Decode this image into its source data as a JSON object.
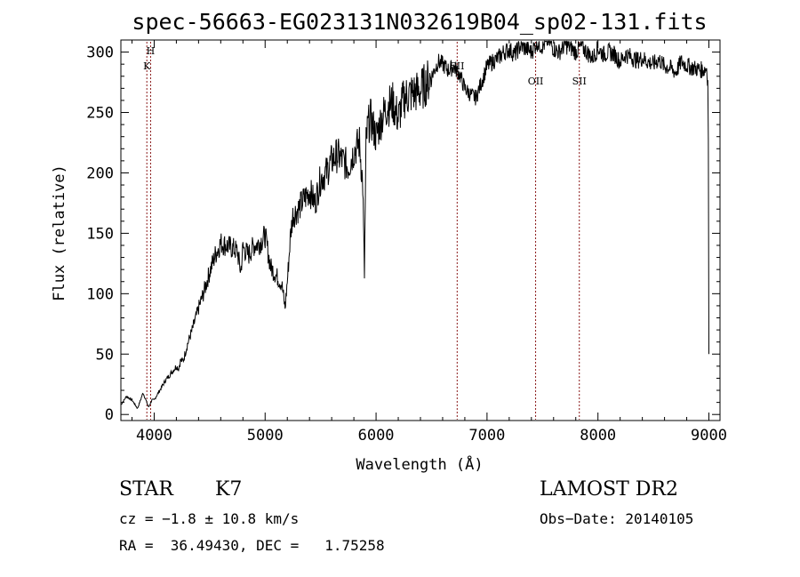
{
  "chart_data": {
    "type": "line",
    "title": "spec-56663-EG023131N032619B04_sp02-131.fits",
    "xlabel": "Wavelength (Å)",
    "ylabel": "Flux (relative)",
    "xlim": [
      3700,
      9100
    ],
    "ylim": [
      -5,
      310
    ],
    "x_ticks": [
      4000,
      5000,
      6000,
      7000,
      8000,
      9000
    ],
    "y_ticks": [
      0,
      50,
      100,
      150,
      200,
      250,
      300
    ],
    "x_tick_labels": [
      "4000",
      "5000",
      "6000",
      "7000",
      "8000",
      "9000"
    ],
    "y_tick_labels": [
      "0",
      "50",
      "100",
      "150",
      "200",
      "250",
      "300"
    ],
    "grid": false,
    "line_color": "#000000",
    "marker_color": "#8b1a1a",
    "series": [
      {
        "x": [
          3700,
          3750,
          3800,
          3850,
          3900,
          3950,
          3980,
          4000,
          4050,
          4100,
          4150,
          4200,
          4220,
          4240,
          4260,
          4300,
          4350,
          4400,
          4450,
          4500,
          4550,
          4600,
          4650,
          4700,
          4750,
          4780,
          4800,
          4850,
          4900,
          4950,
          5000,
          5050,
          5100,
          5150,
          5180,
          5200,
          5230,
          5250,
          5300,
          5350,
          5400,
          5450,
          5500,
          5550,
          5600,
          5650,
          5700,
          5750,
          5800,
          5850,
          5880,
          5895,
          5910,
          5925,
          5950,
          6000,
          6050,
          6100,
          6150,
          6200,
          6250,
          6300,
          6400,
          6500,
          6560,
          6600,
          6650,
          6700,
          6750,
          6800,
          6850,
          6900,
          6950,
          7000,
          7050,
          7100,
          7150,
          7200,
          7250,
          7300,
          7350,
          7400,
          7450,
          7500,
          7550,
          7600,
          7650,
          7700,
          7750,
          7800,
          7850,
          7900,
          7950,
          8000,
          8050,
          8100,
          8150,
          8200,
          8250,
          8300,
          8350,
          8400,
          8450,
          8500,
          8550,
          8600,
          8650,
          8700,
          8750,
          8800,
          8850,
          8900,
          8950,
          8980,
          8990,
          8995,
          9000
        ],
        "y": [
          8,
          15,
          12,
          5,
          18,
          6,
          12,
          12,
          20,
          28,
          34,
          40,
          38,
          45,
          44,
          58,
          72,
          88,
          102,
          118,
          132,
          142,
          140,
          138,
          135,
          118,
          138,
          132,
          140,
          142,
          148,
          122,
          115,
          108,
          88,
          110,
          150,
          165,
          170,
          178,
          185,
          175,
          195,
          200,
          210,
          215,
          210,
          205,
          218,
          225,
          190,
          115,
          225,
          238,
          245,
          230,
          245,
          255,
          258,
          245,
          262,
          265,
          268,
          280,
          292,
          290,
          285,
          288,
          282,
          270,
          265,
          262,
          275,
          288,
          292,
          295,
          300,
          302,
          298,
          305,
          303,
          300,
          308,
          305,
          310,
          303,
          300,
          306,
          304,
          300,
          305,
          300,
          295,
          303,
          298,
          300,
          298,
          292,
          298,
          296,
          293,
          295,
          292,
          290,
          294,
          288,
          287,
          283,
          292,
          289,
          287,
          286,
          285,
          287,
          275,
          230,
          50
        ]
      }
    ],
    "line_markers": [
      {
        "label": "H",
        "x": 3968
      },
      {
        "label": "K",
        "x": 3934
      },
      {
        "label": "SII",
        "x": 6731
      },
      {
        "label": "OII",
        "x": 7438
      },
      {
        "label": "SII",
        "x": 7832
      }
    ]
  },
  "footer": {
    "object_class": "STAR",
    "subclass": "K7",
    "survey": "LAMOST DR2",
    "cz": "cz = −1.8 ± 10.8 km/s",
    "obs_date": "Obs−Date: 20140105",
    "coords": "RA =  36.49430, DEC =   1.75258"
  }
}
